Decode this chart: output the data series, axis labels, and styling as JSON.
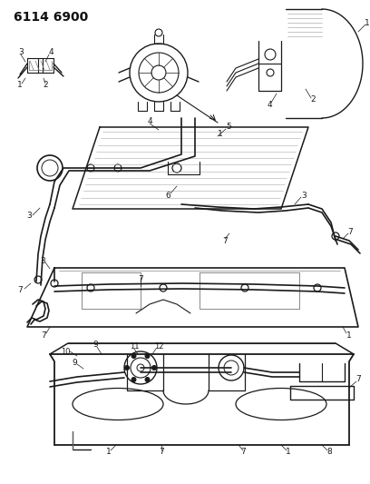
{
  "title": "6114 6900",
  "bg_color": "#ffffff",
  "line_color": "#1a1a1a",
  "title_color": "#111111",
  "title_fontsize": 10,
  "figsize": [
    4.08,
    5.33
  ],
  "dpi": 100,
  "lw": 0.9
}
